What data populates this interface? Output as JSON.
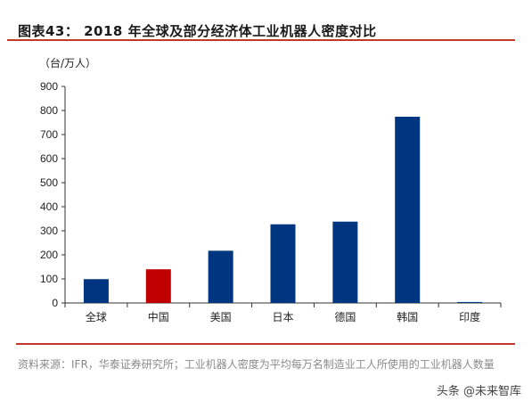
{
  "header": {
    "title": "图表43：  2018 年全球及部分经济体工业机器人密度对比"
  },
  "chart_data": {
    "type": "bar",
    "unit_label": "（台/万人）",
    "categories": [
      "全球",
      "中国",
      "美国",
      "日本",
      "德国",
      "韩国",
      "印度"
    ],
    "values": [
      99,
      140,
      217,
      327,
      338,
      774,
      4
    ],
    "colors": [
      "#003580",
      "#c00000",
      "#003580",
      "#003580",
      "#003580",
      "#003580",
      "#003580"
    ],
    "yticks": [
      "0",
      "100",
      "200",
      "300",
      "400",
      "500",
      "600",
      "700",
      "800",
      "900"
    ],
    "ylim": [
      0,
      900
    ],
    "grid": false,
    "legend": false
  },
  "footer": {
    "source": "资料来源：IFR，华泰证券研究所；工业机器人密度为平均每万名制造业工人所使用的工业机器人数量",
    "watermark": "头条 @未来智库"
  }
}
